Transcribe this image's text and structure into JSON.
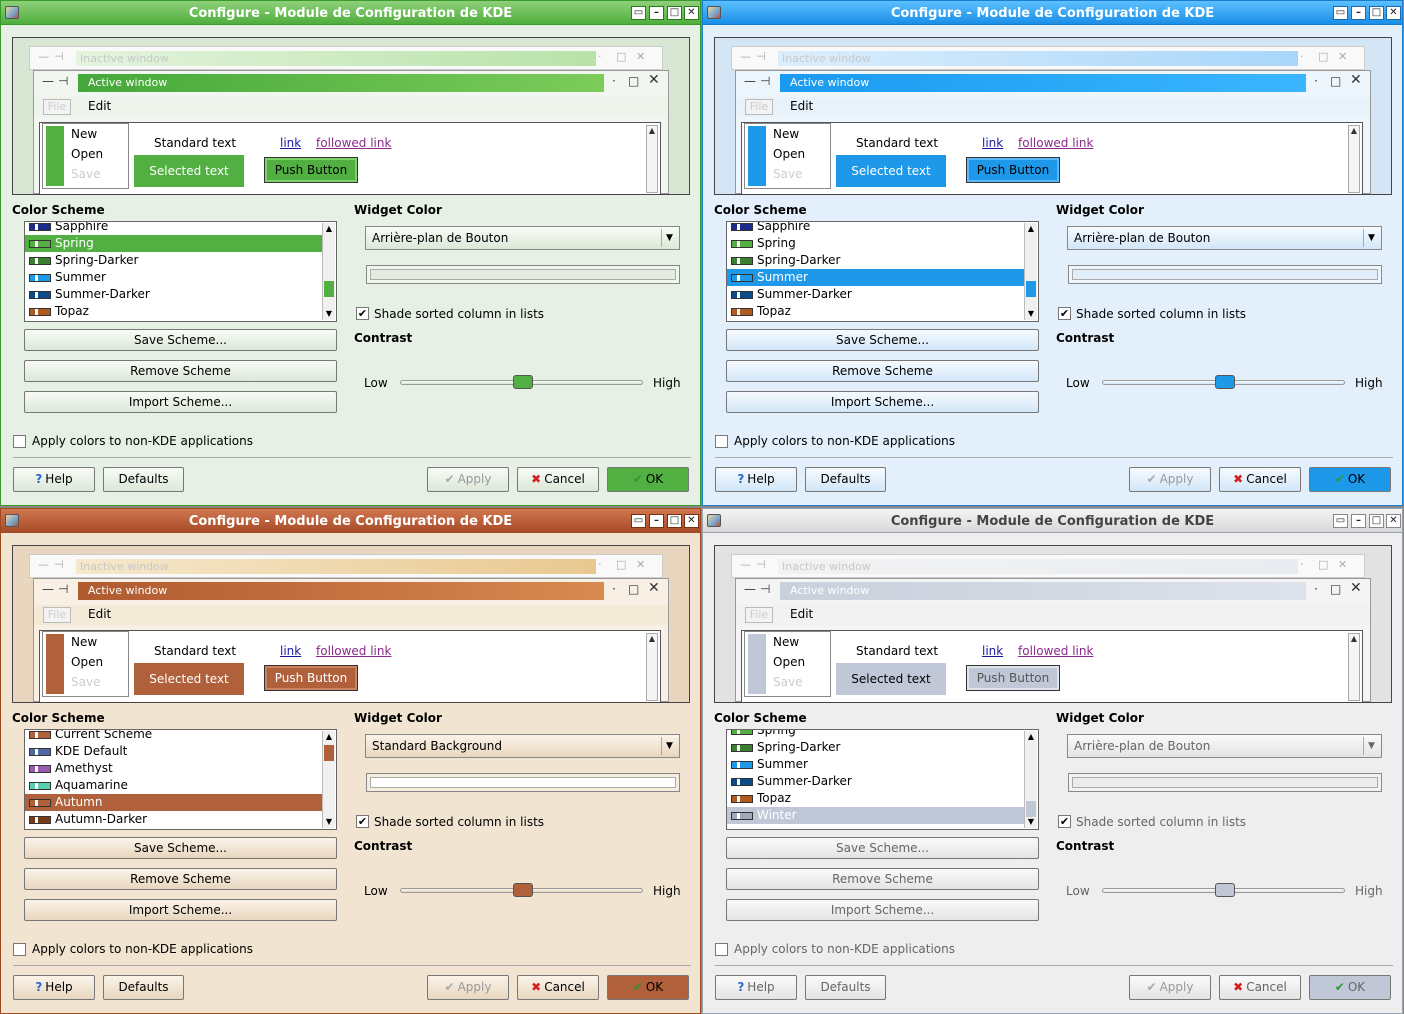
{
  "title": "Configure - Module de Configuration de KDE",
  "window_buttons": [
    "▭",
    "–",
    "□",
    "✕"
  ],
  "preview": {
    "inactive_title": "Inactive window",
    "active_title": "Active window",
    "menu_file": "File",
    "menu_edit": "Edit",
    "popup_items": [
      "New",
      "Open",
      "Save"
    ],
    "standard_text": "Standard text",
    "link": "link",
    "followed_link": "followed link",
    "selected_text": "Selected text",
    "push_button": "Push Button"
  },
  "labels": {
    "color_scheme": "Color Scheme",
    "widget_color": "Widget Color",
    "shade_sorted": "Shade sorted column in lists",
    "contrast": "Contrast",
    "low": "Low",
    "high": "High",
    "apply_non_kde": "Apply colors to non-KDE applications"
  },
  "buttons": {
    "save_scheme": "Save Scheme...",
    "remove_scheme": "Remove Scheme",
    "import_scheme": "Import Scheme...",
    "help": "Help",
    "defaults": "Defaults",
    "apply": "Apply",
    "cancel": "Cancel",
    "ok": "OK"
  },
  "windows": [
    {
      "name": "spring",
      "accent": "#52b043",
      "widget_color_value": "Arrière-plan de Bouton",
      "shade_sorted_checked": true,
      "apply_non_kde_checked": false,
      "contrast_level": 0.5,
      "scheme_list": [
        "Sapphire",
        "Spring",
        "Spring-Darker",
        "Summer",
        "Summer-Darker",
        "Topaz"
      ],
      "selected_scheme": "Spring"
    },
    {
      "name": "summer",
      "accent": "#1e98e8",
      "widget_color_value": "Arrière-plan de Bouton",
      "shade_sorted_checked": true,
      "apply_non_kde_checked": false,
      "contrast_level": 0.5,
      "scheme_list": [
        "Sapphire",
        "Spring",
        "Spring-Darker",
        "Summer",
        "Summer-Darker",
        "Topaz"
      ],
      "selected_scheme": "Summer"
    },
    {
      "name": "autumn",
      "accent": "#b0603a",
      "widget_color_value": "Standard Background",
      "shade_sorted_checked": true,
      "apply_non_kde_checked": false,
      "contrast_level": 0.5,
      "scheme_list": [
        "Current Scheme",
        "KDE Default",
        "Amethyst",
        "Aquamarine",
        "Autumn",
        "Autumn-Darker"
      ],
      "selected_scheme": "Autumn"
    },
    {
      "name": "winter",
      "accent": "#c0c8d8",
      "widget_color_value": "Arrière-plan de Bouton",
      "shade_sorted_checked": true,
      "apply_non_kde_checked": false,
      "contrast_level": 0.5,
      "scheme_list": [
        "Spring",
        "Spring-Darker",
        "Summer",
        "Summer-Darker",
        "Topaz",
        "Winter"
      ],
      "selected_scheme": "Winter"
    }
  ]
}
